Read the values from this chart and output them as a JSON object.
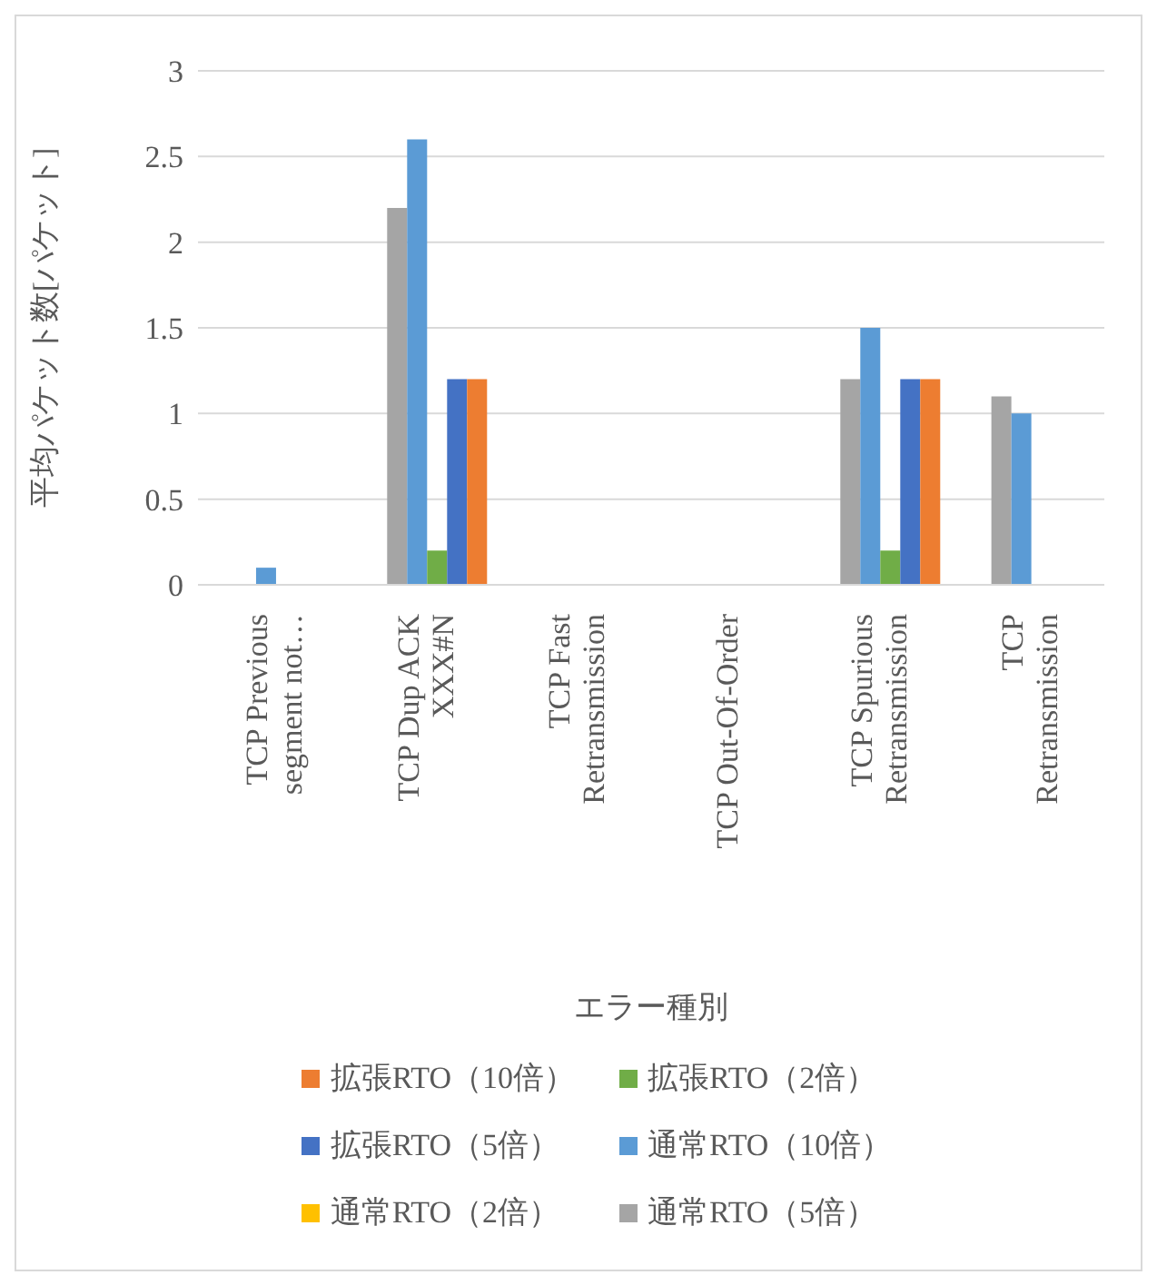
{
  "chart_data": {
    "type": "bar",
    "xlabel": "エラー種別",
    "ylabel": "平均パケット数[パケット]",
    "categories": [
      "TCP Previous segment not…",
      "TCP Dup ACK XXX#N",
      "TCP Fast Retransmission",
      "TCP Out-Of-Order",
      "TCP Spurious Retransmission",
      "TCP Retransmission"
    ],
    "series": [
      {
        "name": "通常RTO（2倍）",
        "color": "#ffc000",
        "values": [
          0,
          0,
          0,
          0,
          0,
          0
        ]
      },
      {
        "name": "通常RTO（5倍）",
        "color": "#a5a5a5",
        "values": [
          0,
          2.2,
          0,
          0,
          1.2,
          1.1
        ]
      },
      {
        "name": "通常RTO（10倍）",
        "color": "#5b9bd5",
        "values": [
          0.1,
          2.6,
          0,
          0,
          1.5,
          1.0
        ]
      },
      {
        "name": "拡張RTO（2倍）",
        "color": "#70ad47",
        "values": [
          0,
          0.2,
          0,
          0,
          0.2,
          0
        ]
      },
      {
        "name": "拡張RTO（5倍）",
        "color": "#4472c4",
        "values": [
          0,
          1.2,
          0,
          0,
          1.2,
          0
        ]
      },
      {
        "name": "拡張RTO（10倍）",
        "color": "#ed7d31",
        "values": [
          0,
          1.2,
          0,
          0,
          1.2,
          0
        ]
      }
    ],
    "ylim": [
      0,
      3
    ],
    "yticks": [
      0,
      0.5,
      1,
      1.5,
      2,
      2.5,
      3
    ],
    "grid": "y",
    "legend": "bottom"
  }
}
